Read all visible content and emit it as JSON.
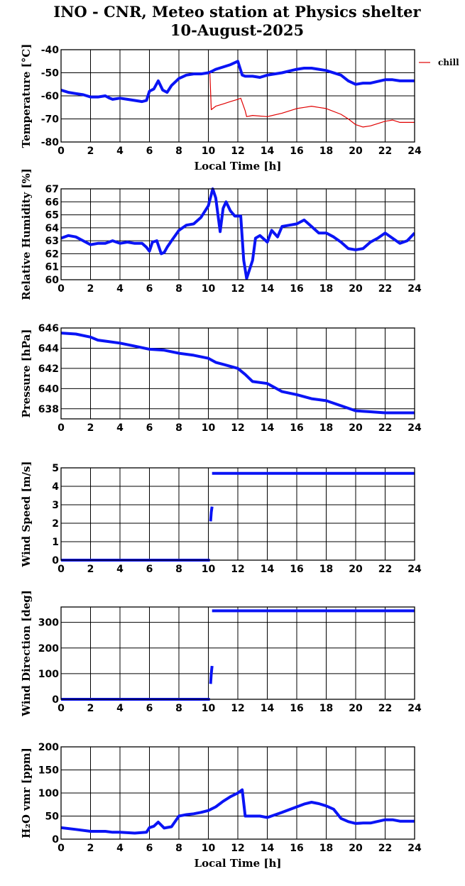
{
  "figure": {
    "title_line1": "INO - CNR, Meteo station at Physics shelter",
    "title_line2": "10-August-2025"
  },
  "colors": {
    "main": "#0a14f5",
    "chill": "#e00000"
  },
  "chart_data": [
    {
      "type": "line",
      "ylabel": "Temperature [°C]",
      "xlabel": "Local Time [h]",
      "xlim": [
        0,
        24
      ],
      "ylim": [
        -80,
        -40
      ],
      "xticks": [
        0,
        2,
        4,
        6,
        8,
        10,
        12,
        14,
        16,
        18,
        20,
        22,
        24
      ],
      "yticks": [
        -80,
        -70,
        -60,
        -50,
        -40
      ],
      "legend": "chill",
      "series": [
        {
          "key": "main",
          "color": "#0a14f5",
          "x": [
            0,
            0.5,
            1,
            1.5,
            2,
            2.5,
            3,
            3.3,
            3.5,
            4,
            4.5,
            5,
            5.5,
            5.8,
            6,
            6.3,
            6.6,
            6.9,
            7.2,
            7.5,
            8,
            8.5,
            9,
            9.5,
            10,
            10.2,
            10.5,
            11,
            11.5,
            12,
            12.3,
            12.5,
            13,
            13.5,
            14,
            15,
            16,
            16.5,
            17,
            17.5,
            18,
            19,
            19.5,
            20,
            20.5,
            21,
            22,
            22.5,
            23,
            24
          ],
          "y": [
            -57.5,
            -58.5,
            -59,
            -59.5,
            -60.5,
            -60.5,
            -60,
            -61,
            -61.5,
            -61,
            -61.5,
            -62,
            -62.5,
            -62,
            -58,
            -57,
            -53.5,
            -57.5,
            -58.5,
            -55.5,
            -52.5,
            -51,
            -50.5,
            -50.5,
            -50,
            -49.5,
            -48.5,
            -47.5,
            -46.5,
            -45,
            -51,
            -51.5,
            -51.5,
            -52,
            -51,
            -50,
            -48.5,
            -48,
            -48,
            -48.5,
            -49,
            -51,
            -53.5,
            -55,
            -54.5,
            -54.5,
            -53,
            -53,
            -53.5,
            -53.5
          ]
        },
        {
          "key": "chill",
          "color": "#e00000",
          "x": [
            10.1,
            10.2,
            10.3,
            10.5,
            11,
            11.5,
            12,
            12.2,
            12.5,
            12.6,
            13,
            14,
            15,
            16,
            16.5,
            17,
            17.5,
            18,
            19,
            19.5,
            20,
            20.5,
            21,
            22,
            22.5,
            23,
            24
          ],
          "y": [
            -50,
            -66,
            -65.5,
            -64.5,
            -63.5,
            -62.5,
            -61.5,
            -61,
            -66.5,
            -69,
            -68.5,
            -69,
            -67.5,
            -65.5,
            -65,
            -64.5,
            -65,
            -65.5,
            -68,
            -70,
            -72.5,
            -73.5,
            -73,
            -71,
            -70.5,
            -71.5,
            -71.5
          ]
        }
      ]
    },
    {
      "type": "line",
      "ylabel": "Relative Humidity [%]",
      "xlim": [
        0,
        24
      ],
      "ylim": [
        60,
        67
      ],
      "xticks": [
        0,
        2,
        4,
        6,
        8,
        10,
        12,
        14,
        16,
        18,
        20,
        22,
        24
      ],
      "yticks": [
        60,
        61,
        62,
        63,
        64,
        65,
        66,
        67
      ],
      "series": [
        {
          "key": "main",
          "color": "#0a14f5",
          "x": [
            0,
            0.5,
            1,
            1.5,
            2,
            2.5,
            3,
            3.5,
            4,
            4.5,
            5,
            5.5,
            5.8,
            6,
            6.2,
            6.5,
            6.8,
            7,
            7.2,
            7.5,
            8,
            8.5,
            9,
            9.5,
            10,
            10.3,
            10.5,
            10.8,
            11,
            11.2,
            11.5,
            11.8,
            12.2,
            12.4,
            12.6,
            13,
            13.2,
            13.5,
            14,
            14.3,
            14.7,
            15,
            15.5,
            16,
            16.5,
            17,
            17.5,
            18,
            18.5,
            19,
            19.5,
            20,
            20.5,
            21,
            21.5,
            22,
            22.5,
            23,
            23.5,
            24
          ],
          "y": [
            63.2,
            63.4,
            63.3,
            63,
            62.7,
            62.8,
            62.8,
            63,
            62.8,
            62.9,
            62.8,
            62.8,
            62.5,
            62.2,
            62.9,
            63,
            62,
            62.1,
            62.5,
            63,
            63.8,
            64.2,
            64.3,
            64.8,
            65.7,
            67,
            66.3,
            63.7,
            65.5,
            66,
            65.3,
            64.9,
            64.9,
            61.5,
            60.1,
            61.5,
            63.2,
            63.4,
            62.9,
            63.8,
            63.3,
            64.1,
            64.2,
            64.3,
            64.6,
            64.1,
            63.6,
            63.6,
            63.3,
            62.9,
            62.4,
            62.3,
            62.4,
            62.9,
            63.2,
            63.6,
            63.2,
            62.8,
            63,
            63.6
          ]
        }
      ]
    },
    {
      "type": "line",
      "ylabel": "Pressure [hPa]",
      "xlim": [
        0,
        24
      ],
      "ylim": [
        637,
        646
      ],
      "xticks": [
        0,
        2,
        4,
        6,
        8,
        10,
        12,
        14,
        16,
        18,
        20,
        22,
        24
      ],
      "yticks": [
        638,
        640,
        642,
        644,
        646
      ],
      "series": [
        {
          "key": "main",
          "color": "#0a14f5",
          "x": [
            0,
            1,
            2,
            2.5,
            3,
            4,
            5,
            6,
            7,
            8,
            9,
            10,
            10.5,
            11,
            12,
            12.5,
            13,
            14,
            15,
            16,
            17,
            18,
            19,
            20,
            21,
            22,
            23,
            24
          ],
          "y": [
            645.5,
            645.4,
            645.1,
            644.8,
            644.7,
            644.5,
            644.2,
            643.9,
            643.8,
            643.5,
            643.3,
            643,
            642.6,
            642.4,
            642,
            641.4,
            640.7,
            640.5,
            639.7,
            639.4,
            639,
            638.8,
            638.3,
            637.8,
            637.7,
            637.6,
            637.6,
            637.6
          ]
        }
      ]
    },
    {
      "type": "line",
      "ylabel": "Wind Speed [m/s]",
      "xlim": [
        0,
        24
      ],
      "ylim": [
        0,
        5
      ],
      "xticks": [
        0,
        2,
        4,
        6,
        8,
        10,
        12,
        14,
        16,
        18,
        20,
        22,
        24
      ],
      "yticks": [
        0,
        1,
        2,
        3,
        4,
        5
      ],
      "series": [
        {
          "key": "main",
          "color": "#0a14f5",
          "x": [
            0,
            10.1
          ],
          "y": [
            0,
            0
          ]
        },
        {
          "key": "main",
          "color": "#0a14f5",
          "x": [
            10.15,
            10.2,
            10.25
          ],
          "y": [
            2.1,
            2.6,
            2.9
          ]
        },
        {
          "key": "main",
          "color": "#0a14f5",
          "x": [
            10.25,
            24
          ],
          "y": [
            4.7,
            4.7
          ]
        }
      ]
    },
    {
      "type": "line",
      "ylabel": "Wind Direction [deg]",
      "xlim": [
        0,
        24
      ],
      "ylim": [
        0,
        360
      ],
      "xticks": [
        0,
        2,
        4,
        6,
        8,
        10,
        12,
        14,
        16,
        18,
        20,
        22,
        24
      ],
      "yticks": [
        0,
        100,
        200,
        300
      ],
      "series": [
        {
          "key": "main",
          "color": "#0a14f5",
          "x": [
            0,
            10.1
          ],
          "y": [
            0,
            0
          ]
        },
        {
          "key": "main",
          "color": "#0a14f5",
          "x": [
            10.15,
            10.2,
            10.25
          ],
          "y": [
            60,
            100,
            130
          ]
        },
        {
          "key": "main",
          "color": "#0a14f5",
          "x": [
            10.25,
            24
          ],
          "y": [
            345,
            345
          ]
        }
      ]
    },
    {
      "type": "line",
      "ylabel": "H₂O vmr [ppm]",
      "xlabel": "Local Time [h]",
      "xlim": [
        0,
        24
      ],
      "ylim": [
        0,
        200
      ],
      "xticks": [
        0,
        2,
        4,
        6,
        8,
        10,
        12,
        14,
        16,
        18,
        20,
        22,
        24
      ],
      "yticks": [
        0,
        50,
        100,
        150,
        200
      ],
      "series": [
        {
          "key": "main",
          "color": "#0a14f5",
          "x": [
            0,
            1,
            2,
            3,
            3.5,
            4,
            5,
            5.8,
            6,
            6.3,
            6.6,
            7,
            7.5,
            8,
            8.5,
            9,
            9.5,
            10,
            10.5,
            11,
            11.5,
            12,
            12.3,
            12.5,
            13,
            13.5,
            14,
            15,
            16,
            16.5,
            17,
            17.5,
            18,
            18.5,
            19,
            19.5,
            20,
            20.5,
            21,
            22,
            22.5,
            23,
            24
          ],
          "y": [
            25,
            21,
            17,
            17,
            15,
            15,
            13,
            15,
            25,
            28,
            37,
            24,
            27,
            50,
            53,
            55,
            58,
            62,
            70,
            82,
            92,
            100,
            107,
            50,
            50,
            50,
            47,
            58,
            70,
            76,
            80,
            77,
            72,
            65,
            45,
            38,
            34,
            35,
            35,
            42,
            42,
            39,
            39
          ]
        }
      ]
    }
  ]
}
